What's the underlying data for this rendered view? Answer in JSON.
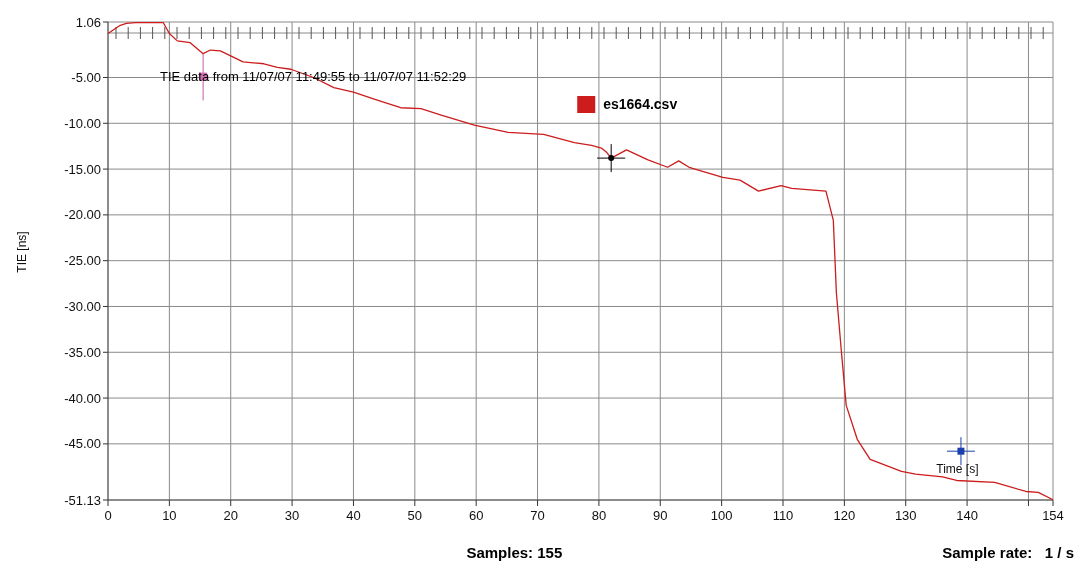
{
  "chart_data": {
    "type": "line",
    "ylabel": "TIE [ns]",
    "xlabel": "Time [s]",
    "annotations": [
      "TIE data from 11/07/07 11:49:55  to  11/07/07 11:52:29",
      "Samples: 155",
      "Sample rate:   1 / s"
    ],
    "xlim": [
      0,
      154
    ],
    "xticks": [
      0,
      10,
      20,
      30,
      40,
      50,
      60,
      70,
      80,
      90,
      100,
      110,
      120,
      130,
      140,
      {
        "value": 150,
        "label": null
      },
      154
    ],
    "ylim": [
      -51.13,
      1.06
    ],
    "yticks": [
      {
        "value": 1.06,
        "label": "1.06"
      },
      {
        "value": -5,
        "label": "-5.00"
      },
      {
        "value": -10,
        "label": "-10.00"
      },
      {
        "value": -15,
        "label": "-15.00"
      },
      {
        "value": -20,
        "label": "-20.00"
      },
      {
        "value": -25,
        "label": "-25.00"
      },
      {
        "value": -30,
        "label": "-30.00"
      },
      {
        "value": -35,
        "label": "-35.00"
      },
      {
        "value": -40,
        "label": "-40.00"
      },
      {
        "value": -45,
        "label": "-45.00"
      },
      {
        "value": -51.13,
        "label": "-51.13"
      }
    ],
    "grid": true,
    "legend": "top",
    "marker": "none",
    "line_style": "solid",
    "series": [
      {
        "name": "es1664.csv",
        "color": "#cc1c1c",
        "x": [
          0,
          2,
          3,
          4.5,
          9,
          10,
          11.3,
          13.4,
          15.5,
          16.7,
          18.3,
          20.5,
          22,
          25.4,
          27.6,
          29.8,
          33.5,
          36.8,
          40,
          44,
          47.7,
          51,
          54.3,
          59.7,
          65.2,
          71,
          76,
          78.8,
          80.4,
          81.3,
          82,
          84.5,
          88,
          91.2,
          93,
          94.7,
          100.2,
          103,
          106,
          109.7,
          111.4,
          117,
          118.2,
          118.7,
          119.5,
          120.3,
          122.1,
          124.2,
          129.3,
          131.6,
          136,
          138.3,
          144.5,
          149.6,
          151.6,
          154
        ],
        "values": [
          -0.2,
          0.7,
          0.9,
          1.0,
          1.0,
          -0.2,
          -1.0,
          -1.2,
          -2.4,
          -2.0,
          -2.1,
          -2.8,
          -3.3,
          -3.5,
          -3.9,
          -4.1,
          -5.0,
          -6.1,
          -6.6,
          -7.5,
          -8.3,
          -8.4,
          -9.1,
          -10.2,
          -11.0,
          -11.2,
          -12.1,
          -12.4,
          -12.7,
          -13.2,
          -13.8,
          -12.9,
          -14.0,
          -14.8,
          -14.1,
          -14.8,
          -15.9,
          -16.2,
          -17.4,
          -16.8,
          -17.1,
          -17.4,
          -20.6,
          -28.5,
          -34.8,
          -40.8,
          -44.5,
          -46.7,
          -48.0,
          -48.3,
          -48.6,
          -49.0,
          -49.2,
          -50.2,
          -50.3,
          -51.1
        ]
      }
    ]
  }
}
